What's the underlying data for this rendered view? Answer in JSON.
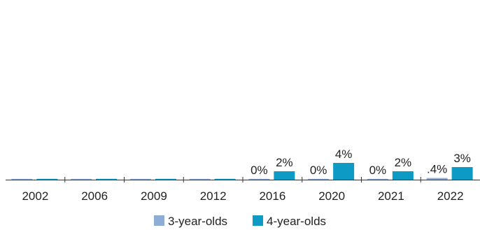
{
  "chart_data": {
    "type": "bar",
    "categories": [
      "2002",
      "2006",
      "2009",
      "2012",
      "2016",
      "2020",
      "2021",
      "2022"
    ],
    "series": [
      {
        "name": "3-year-olds",
        "values": [
          0,
          0,
          0,
          0,
          0,
          0,
          0,
          0.4
        ],
        "labels": [
          "",
          "",
          "",
          "",
          "0%",
          "0%",
          "0%",
          ".4%"
        ],
        "color": "#8eadd4"
      },
      {
        "name": "4-year-olds",
        "values": [
          0,
          0,
          0,
          0,
          2,
          4,
          2,
          3
        ],
        "labels": [
          "",
          "",
          "",
          "",
          "2%",
          "4%",
          "2%",
          "3%"
        ],
        "color": "#0d9bc6"
      }
    ],
    "ylim": [
      0,
      40
    ],
    "grid": false,
    "legend_position": "bottom-center"
  }
}
